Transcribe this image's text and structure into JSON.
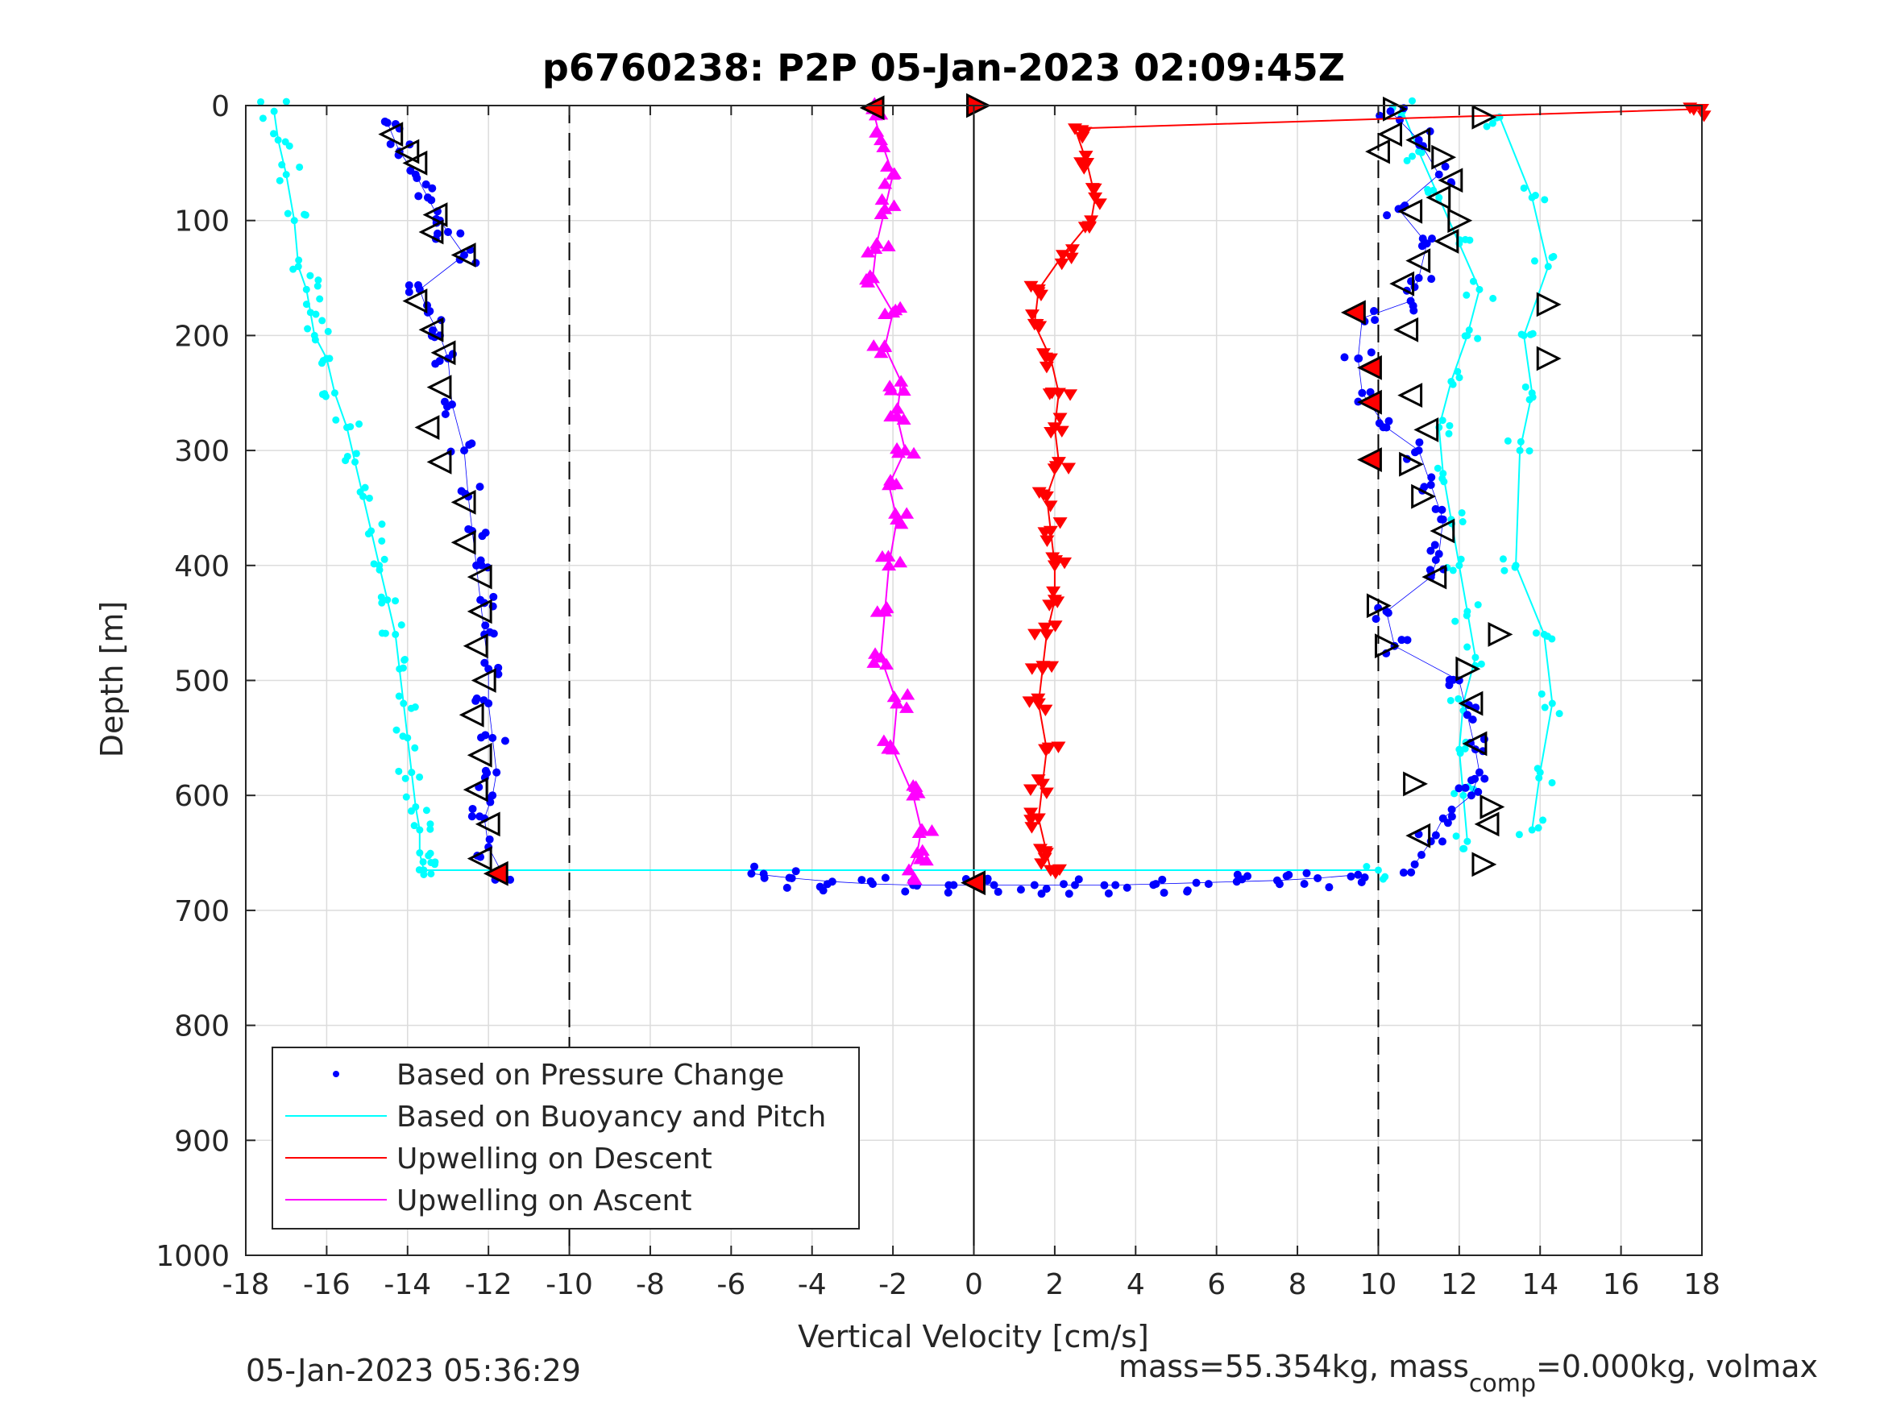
{
  "chart_data": {
    "type": "scatter",
    "title": "p6760238: P2P 05-Jan-2023 02:09:45Z",
    "xlabel": "Vertical Velocity [cm/s]",
    "ylabel": "Depth [m]",
    "xlim": [
      -18,
      18
    ],
    "ylim": [
      0,
      1000
    ],
    "y_reversed": true,
    "grid": true,
    "x_ticks": [
      "-18",
      "-16",
      "-14",
      "-12",
      "-10",
      "-8",
      "-6",
      "-4",
      "-2",
      "0",
      "2",
      "4",
      "6",
      "8",
      "10",
      "12",
      "14",
      "16",
      "18"
    ],
    "y_ticks": [
      "0",
      "100",
      "200",
      "300",
      "400",
      "500",
      "600",
      "700",
      "800",
      "900",
      "1000"
    ],
    "reference_lines": [
      {
        "x": -10,
        "style": "dashed"
      },
      {
        "x": 10,
        "style": "dashed"
      },
      {
        "x": 0,
        "style": "solid"
      }
    ],
    "legend_position": "bottom-left",
    "legend": [
      {
        "label": "Based on Pressure Change",
        "color": "#0000ff",
        "marker": "dot"
      },
      {
        "label": "Based on Buoyancy and Pitch",
        "color": "#00ffff",
        "marker": "line"
      },
      {
        "label": "Upwelling on Descent",
        "color": "#ff0000",
        "marker": "line"
      },
      {
        "label": "Upwelling on Ascent",
        "color": "#ff00ff",
        "marker": "line"
      }
    ],
    "series": [
      {
        "name": "Based on Buoyancy and Pitch",
        "color": "#00ffff",
        "segments": [
          {
            "x": [
              -17.3,
              -17.2,
              -17.0,
              -16.8,
              -16.7,
              -16.5,
              -16.4,
              -16.3,
              -16.0,
              -15.8,
              -15.5,
              -15.3,
              -15.1,
              -14.9,
              -14.7,
              -14.5,
              -14.3,
              -14.2,
              -14.1,
              -14.0,
              -13.9,
              -13.8,
              -13.7,
              -13.7,
              -13.6
            ],
            "y": [
              5,
              30,
              60,
              100,
              140,
              160,
              180,
              200,
              220,
              250,
              280,
              310,
              340,
              370,
              400,
              430,
              460,
              490,
              520,
              550,
              580,
              610,
              630,
              650,
              665
            ]
          },
          {
            "x": [
              10.6,
              11.0,
              11.5,
              12.0,
              12.5,
              12.2,
              11.8,
              11.5,
              11.6,
              11.8,
              12.0,
              12.2,
              12.4,
              12.1,
              12.0,
              12.1,
              12.2
            ],
            "y": [
              5,
              40,
              80,
              120,
              160,
              200,
              240,
              280,
              320,
              360,
              400,
              440,
              480,
              520,
              560,
              600,
              640
            ]
          },
          {
            "x": [
              13.0,
              13.8,
              14.2,
              13.6,
              13.8,
              13.5,
              13.4,
              14.1,
              14.3,
              14.0,
              13.8
            ],
            "y": [
              10,
              80,
              140,
              200,
              250,
              300,
              400,
              460,
              520,
              580,
              630
            ]
          },
          {
            "x": [
              -13.6,
              10.0
            ],
            "y": [
              665,
              665
            ]
          }
        ]
      },
      {
        "name": "Based on Pressure Change",
        "color": "#0000ff",
        "segments": [
          {
            "x": [
              -14.5,
              -14.2,
              -13.8,
              -13.5,
              -13.2,
              -13.0,
              -12.6,
              -13.7,
              -13.5,
              -13.2,
              -13.0,
              -12.9,
              -12.6,
              -12.5,
              -12.4,
              -12.3,
              -12.2,
              -12.1,
              -12.0,
              -12.0,
              -11.9,
              -11.8,
              -11.9,
              -12.1,
              -12.0,
              -11.7
            ],
            "y": [
              15,
              40,
              60,
              80,
              100,
              110,
              130,
              160,
              180,
              200,
              220,
              260,
              300,
              340,
              370,
              400,
              430,
              460,
              490,
              520,
              550,
              580,
              600,
              620,
              645,
              665
            ]
          },
          {
            "x": [
              -5.5,
              -4.5,
              -3.5,
              -2.5,
              -1.5,
              -0.5,
              0.5,
              1.5,
              2.5,
              3.5,
              4.5,
              5.5,
              6.5,
              7.5,
              8.5,
              9.5
            ],
            "y": [
              668,
              672,
              675,
              677,
              678,
              678,
              678,
              678,
              678,
              678,
              677,
              676,
              675,
              674,
              672,
              669
            ]
          },
          {
            "x": [
              10.3,
              11.0,
              11.5,
              10.5,
              11.2,
              11.0,
              10.8,
              9.6,
              9.5,
              9.6,
              10.2,
              11.0,
              11.3,
              11.6,
              11.5,
              11.3,
              10.2,
              10.4,
              12.0,
              12.2,
              12.4,
              12.5,
              12.3,
              11.6,
              11.3,
              10.9
            ],
            "y": [
              5,
              30,
              60,
              90,
              120,
              150,
              170,
              185,
              220,
              250,
              280,
              300,
              330,
              360,
              390,
              410,
              440,
              470,
              500,
              530,
              560,
              580,
              600,
              620,
              640,
              660
            ]
          }
        ]
      },
      {
        "name": "Upwelling on Descent",
        "color": "#ff0000",
        "segments": [
          {
            "x": [
              18.0,
              2.5,
              2.8,
              3.0,
              2.9,
              2.2,
              1.6,
              1.5,
              1.9,
              2.1,
              2.0,
              2.1,
              1.8,
              1.9,
              2.0,
              2.0,
              1.8,
              1.7,
              1.6,
              1.8,
              1.7,
              1.6,
              1.8,
              1.9
            ],
            "y": [
              3,
              20,
              50,
              80,
              100,
              130,
              160,
              190,
              220,
              250,
              280,
              310,
              340,
              370,
              400,
              430,
              460,
              490,
              520,
              560,
              590,
              620,
              650,
              665
            ]
          }
        ]
      },
      {
        "name": "Upwelling on Ascent",
        "color": "#ff00ff",
        "segments": [
          {
            "x": [
              -2.5,
              -2.3,
              -2.0,
              -2.2,
              -2.4,
              -2.5,
              -2.0,
              -2.2,
              -1.8,
              -1.9,
              -1.7,
              -2.1,
              -1.9,
              -2.1,
              -2.2,
              -2.3,
              -1.9,
              -2.0,
              -1.5,
              -1.3,
              -1.4,
              -1.6
            ],
            "y": [
              3,
              30,
              60,
              90,
              120,
              150,
              180,
              210,
              240,
              270,
              300,
              330,
              360,
              400,
              440,
              480,
              520,
              560,
              600,
              630,
              650,
              665
            ]
          }
        ]
      }
    ],
    "triangles": [
      {
        "x": -2.5,
        "y": 2,
        "dir": "left",
        "fill": "#ff0000"
      },
      {
        "x": 0.1,
        "y": 0,
        "dir": "right",
        "fill": "#ff0000"
      },
      {
        "x": -14.4,
        "y": 25,
        "dir": "left",
        "fill": "none"
      },
      {
        "x": -14.0,
        "y": 40,
        "dir": "left",
        "fill": "none"
      },
      {
        "x": -13.8,
        "y": 50,
        "dir": "left",
        "fill": "none"
      },
      {
        "x": -13.3,
        "y": 95,
        "dir": "left",
        "fill": "none"
      },
      {
        "x": -13.4,
        "y": 110,
        "dir": "left",
        "fill": "none"
      },
      {
        "x": -12.6,
        "y": 130,
        "dir": "left",
        "fill": "none"
      },
      {
        "x": -13.8,
        "y": 170,
        "dir": "left",
        "fill": "none"
      },
      {
        "x": -13.4,
        "y": 195,
        "dir": "left",
        "fill": "none"
      },
      {
        "x": -13.1,
        "y": 215,
        "dir": "left",
        "fill": "none"
      },
      {
        "x": -13.2,
        "y": 245,
        "dir": "left",
        "fill": "none"
      },
      {
        "x": -13.5,
        "y": 280,
        "dir": "left",
        "fill": "none"
      },
      {
        "x": -13.2,
        "y": 310,
        "dir": "left",
        "fill": "none"
      },
      {
        "x": -12.6,
        "y": 345,
        "dir": "left",
        "fill": "none"
      },
      {
        "x": -12.6,
        "y": 380,
        "dir": "left",
        "fill": "none"
      },
      {
        "x": -12.2,
        "y": 410,
        "dir": "left",
        "fill": "none"
      },
      {
        "x": -12.2,
        "y": 440,
        "dir": "left",
        "fill": "none"
      },
      {
        "x": -12.3,
        "y": 470,
        "dir": "left",
        "fill": "none"
      },
      {
        "x": -12.1,
        "y": 500,
        "dir": "left",
        "fill": "none"
      },
      {
        "x": -12.4,
        "y": 530,
        "dir": "left",
        "fill": "none"
      },
      {
        "x": -12.2,
        "y": 565,
        "dir": "left",
        "fill": "none"
      },
      {
        "x": -12.3,
        "y": 595,
        "dir": "left",
        "fill": "none"
      },
      {
        "x": -12.0,
        "y": 625,
        "dir": "left",
        "fill": "none"
      },
      {
        "x": -12.2,
        "y": 655,
        "dir": "left",
        "fill": "none"
      },
      {
        "x": -11.8,
        "y": 668,
        "dir": "left",
        "fill": "#ff0000"
      },
      {
        "x": 0.0,
        "y": 676,
        "dir": "left",
        "fill": "#ff0000"
      },
      {
        "x": 10.4,
        "y": 3,
        "dir": "right",
        "fill": "none"
      },
      {
        "x": 12.6,
        "y": 10,
        "dir": "right",
        "fill": "none"
      },
      {
        "x": 10.3,
        "y": 25,
        "dir": "left",
        "fill": "none"
      },
      {
        "x": 11.0,
        "y": 30,
        "dir": "left",
        "fill": "none"
      },
      {
        "x": 10.0,
        "y": 40,
        "dir": "left",
        "fill": "none"
      },
      {
        "x": 11.6,
        "y": 45,
        "dir": "right",
        "fill": "none"
      },
      {
        "x": 11.8,
        "y": 65,
        "dir": "left",
        "fill": "none"
      },
      {
        "x": 11.5,
        "y": 80,
        "dir": "left",
        "fill": "none"
      },
      {
        "x": 10.8,
        "y": 92,
        "dir": "left",
        "fill": "none"
      },
      {
        "x": 12.0,
        "y": 100,
        "dir": "right",
        "fill": "none"
      },
      {
        "x": 11.7,
        "y": 118,
        "dir": "left",
        "fill": "none"
      },
      {
        "x": 11.0,
        "y": 135,
        "dir": "left",
        "fill": "none"
      },
      {
        "x": 10.6,
        "y": 155,
        "dir": "left",
        "fill": "none"
      },
      {
        "x": 14.2,
        "y": 173,
        "dir": "right",
        "fill": "none"
      },
      {
        "x": 9.4,
        "y": 180,
        "dir": "left",
        "fill": "#ff0000"
      },
      {
        "x": 10.7,
        "y": 195,
        "dir": "left",
        "fill": "none"
      },
      {
        "x": 14.2,
        "y": 220,
        "dir": "right",
        "fill": "none"
      },
      {
        "x": 9.8,
        "y": 228,
        "dir": "left",
        "fill": "#ff0000"
      },
      {
        "x": 10.8,
        "y": 252,
        "dir": "left",
        "fill": "none"
      },
      {
        "x": 9.8,
        "y": 258,
        "dir": "left",
        "fill": "#ff0000"
      },
      {
        "x": 11.2,
        "y": 282,
        "dir": "left",
        "fill": "none"
      },
      {
        "x": 9.8,
        "y": 308,
        "dir": "left",
        "fill": "#ff0000"
      },
      {
        "x": 10.8,
        "y": 312,
        "dir": "right",
        "fill": "none"
      },
      {
        "x": 11.1,
        "y": 340,
        "dir": "right",
        "fill": "none"
      },
      {
        "x": 11.6,
        "y": 370,
        "dir": "left",
        "fill": "none"
      },
      {
        "x": 11.4,
        "y": 410,
        "dir": "left",
        "fill": "none"
      },
      {
        "x": 10.0,
        "y": 435,
        "dir": "right",
        "fill": "none"
      },
      {
        "x": 13.0,
        "y": 460,
        "dir": "right",
        "fill": "none"
      },
      {
        "x": 10.2,
        "y": 470,
        "dir": "right",
        "fill": "none"
      },
      {
        "x": 12.2,
        "y": 490,
        "dir": "right",
        "fill": "none"
      },
      {
        "x": 12.3,
        "y": 520,
        "dir": "left",
        "fill": "none"
      },
      {
        "x": 12.4,
        "y": 555,
        "dir": "left",
        "fill": "none"
      },
      {
        "x": 10.9,
        "y": 590,
        "dir": "right",
        "fill": "none"
      },
      {
        "x": 12.8,
        "y": 610,
        "dir": "right",
        "fill": "none"
      },
      {
        "x": 12.7,
        "y": 625,
        "dir": "left",
        "fill": "none"
      },
      {
        "x": 11.0,
        "y": 635,
        "dir": "left",
        "fill": "none"
      },
      {
        "x": 12.6,
        "y": 660,
        "dir": "right",
        "fill": "none"
      }
    ]
  },
  "footer": {
    "timestamp": "05-Jan-2023 05:36:29",
    "mass_text_a": "mass=55.354kg, mass",
    "mass_sub": "comp",
    "mass_text_b": "=0.000kg, volmax"
  }
}
